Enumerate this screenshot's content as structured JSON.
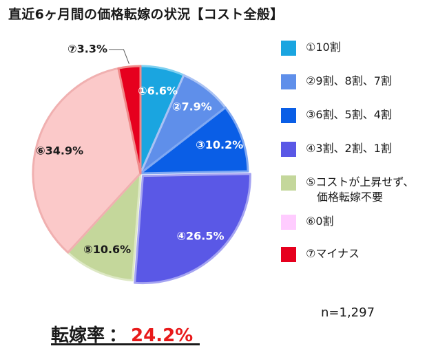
{
  "title": "直近6ヶ月間の価格転嫁の状況【コスト全般】",
  "sample_size": "n=1,297",
  "pass_through": {
    "label": "転嫁率",
    "separator": "：",
    "value": "24.2%"
  },
  "chart_data": {
    "type": "pie",
    "title": "直近6ヶ月間の価格転嫁の状況【コスト全般】",
    "start": "12 o'clock",
    "direction": "clockwise",
    "slices": [
      {
        "marker": "①",
        "legend": "①10割",
        "label": "①6.6%",
        "value": 6.6,
        "color": "#1aa5e0",
        "border": "#7fd0f0",
        "label_color": "light"
      },
      {
        "marker": "②",
        "legend": "②9割、8割、7割",
        "label": "②7.9%",
        "value": 7.9,
        "color": "#5f8fea",
        "border": "#a9c2f4",
        "label_color": "light"
      },
      {
        "marker": "③",
        "legend": "③6割、5割、4割",
        "label": "③10.2%",
        "value": 10.2,
        "color": "#0a5ee6",
        "border": "#7fa8f2",
        "label_color": "light"
      },
      {
        "marker": "④",
        "legend": "④3割、2割、1割",
        "label": "④26.5%",
        "value": 26.5,
        "color": "#5a58e6",
        "border": "#a5a4f2",
        "label_color": "light"
      },
      {
        "marker": "⑤",
        "legend": "⑤コストが上昇せず、\n　価格転嫁不要",
        "label": "⑤10.6%",
        "value": 10.6,
        "color": "#c4d79b",
        "border": "#dde8c4",
        "label_color": "dark"
      },
      {
        "marker": "⑥",
        "legend": "⑥0割",
        "label": "⑥34.9%",
        "value": 34.9,
        "color": "#fbc9c9",
        "border": "#f0b0b0",
        "label_color": "dark",
        "legend_color": "#ffccff"
      },
      {
        "marker": "⑦",
        "legend": "⑦マイナス",
        "label": "⑦3.3%",
        "value": 3.3,
        "color": "#e6001e",
        "border": "#f08a8a",
        "label_color": "dark",
        "label_outside": true
      }
    ]
  }
}
